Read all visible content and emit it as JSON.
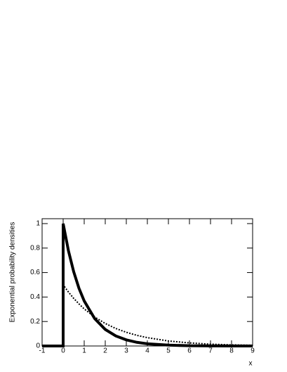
{
  "chart_data": {
    "type": "line",
    "y_label": "Exponential probability densities",
    "x_label": "x",
    "x": [
      -1,
      0,
      0,
      0.25,
      0.5,
      0.75,
      1,
      1.5,
      2,
      2.5,
      3,
      3.5,
      4,
      5,
      6,
      7,
      8,
      9
    ],
    "series": [
      {
        "color": "#000000",
        "dash": "solid",
        "width": 4,
        "values": [
          0,
          0,
          1,
          0.779,
          0.607,
          0.472,
          0.368,
          0.223,
          0.135,
          0.082,
          0.05,
          0.03,
          0.018,
          0.007,
          0.002,
          0.001,
          0.0003,
          0.0001
        ]
      },
      {
        "color": "#000000",
        "dash": "dotted",
        "width": 2,
        "values": [
          0,
          0,
          0.5,
          0.441,
          0.389,
          0.344,
          0.303,
          0.236,
          0.184,
          0.143,
          0.112,
          0.087,
          0.068,
          0.041,
          0.025,
          0.015,
          0.009,
          0.006
        ]
      }
    ],
    "xlim": [
      -1,
      9
    ],
    "ylim": [
      0,
      1.04
    ],
    "xticks": [
      -1,
      0,
      1,
      2,
      3,
      4,
      5,
      6,
      7,
      8,
      9
    ],
    "yticks": [
      0,
      0.2,
      0.4,
      0.6,
      0.8,
      1
    ],
    "grid": false
  }
}
